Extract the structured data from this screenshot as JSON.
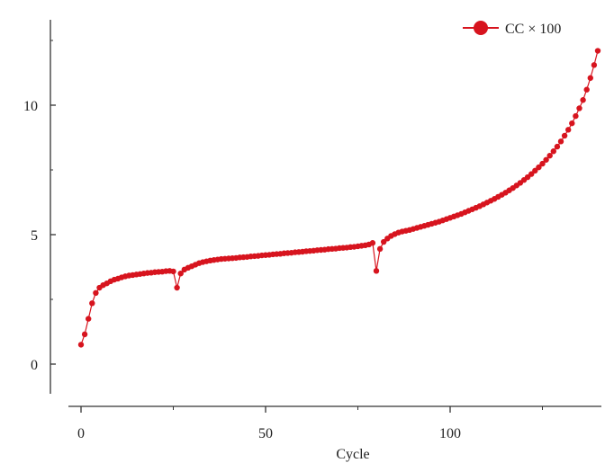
{
  "chart_data": {
    "type": "line",
    "title": "",
    "xlabel": "Cycle",
    "ylabel": "",
    "xlim": [
      -3,
      142
    ],
    "ylim": [
      -1,
      13.2
    ],
    "xticks": [
      0,
      50,
      100
    ],
    "yticks": [
      0,
      5,
      10
    ],
    "grid": false,
    "legend_position": "top-right",
    "series": [
      {
        "name": "CC × 100",
        "color": "#d7141e",
        "marker": "circle",
        "x": [
          0,
          1,
          2,
          3,
          4,
          5,
          6,
          7,
          8,
          9,
          10,
          11,
          12,
          13,
          14,
          15,
          16,
          17,
          18,
          19,
          20,
          21,
          22,
          23,
          24,
          25,
          26,
          27,
          28,
          29,
          30,
          31,
          32,
          33,
          34,
          35,
          36,
          37,
          38,
          39,
          40,
          41,
          42,
          43,
          44,
          45,
          46,
          47,
          48,
          49,
          50,
          51,
          52,
          53,
          54,
          55,
          56,
          57,
          58,
          59,
          60,
          61,
          62,
          63,
          64,
          65,
          66,
          67,
          68,
          69,
          70,
          71,
          72,
          73,
          74,
          75,
          76,
          77,
          78,
          79,
          80,
          81,
          82,
          83,
          84,
          85,
          86,
          87,
          88,
          89,
          90,
          91,
          92,
          93,
          94,
          95,
          96,
          97,
          98,
          99,
          100,
          101,
          102,
          103,
          104,
          105,
          106,
          107,
          108,
          109,
          110,
          111,
          112,
          113,
          114,
          115,
          116,
          117,
          118,
          119,
          120,
          121,
          122,
          123,
          124,
          125,
          126,
          127,
          128,
          129,
          130,
          131,
          132,
          133,
          134,
          135,
          136,
          137,
          138,
          139,
          140
        ],
        "values": [
          0.75,
          1.15,
          1.75,
          2.35,
          2.75,
          2.95,
          3.05,
          3.12,
          3.2,
          3.26,
          3.3,
          3.35,
          3.39,
          3.42,
          3.44,
          3.46,
          3.48,
          3.5,
          3.52,
          3.53,
          3.55,
          3.56,
          3.57,
          3.59,
          3.6,
          3.58,
          2.95,
          3.5,
          3.65,
          3.72,
          3.78,
          3.84,
          3.9,
          3.94,
          3.97,
          4.0,
          4.02,
          4.04,
          4.06,
          4.07,
          4.08,
          4.09,
          4.1,
          4.12,
          4.13,
          4.14,
          4.16,
          4.17,
          4.18,
          4.2,
          4.21,
          4.22,
          4.24,
          4.25,
          4.26,
          4.28,
          4.29,
          4.3,
          4.32,
          4.33,
          4.34,
          4.36,
          4.37,
          4.38,
          4.4,
          4.41,
          4.42,
          4.44,
          4.45,
          4.46,
          4.48,
          4.49,
          4.5,
          4.52,
          4.53,
          4.55,
          4.57,
          4.59,
          4.62,
          4.68,
          3.6,
          4.45,
          4.72,
          4.85,
          4.95,
          5.02,
          5.08,
          5.12,
          5.15,
          5.18,
          5.22,
          5.26,
          5.3,
          5.34,
          5.38,
          5.42,
          5.46,
          5.5,
          5.55,
          5.6,
          5.65,
          5.7,
          5.75,
          5.8,
          5.86,
          5.92,
          5.98,
          6.04,
          6.1,
          6.17,
          6.24,
          6.31,
          6.38,
          6.46,
          6.54,
          6.62,
          6.71,
          6.8,
          6.9,
          7.0,
          7.11,
          7.22,
          7.34,
          7.47,
          7.6,
          7.74,
          7.89,
          8.05,
          8.22,
          8.4,
          8.6,
          8.82,
          9.05,
          9.3,
          9.58,
          9.88,
          10.2,
          10.6,
          11.05,
          11.55,
          12.1
        ]
      }
    ]
  }
}
